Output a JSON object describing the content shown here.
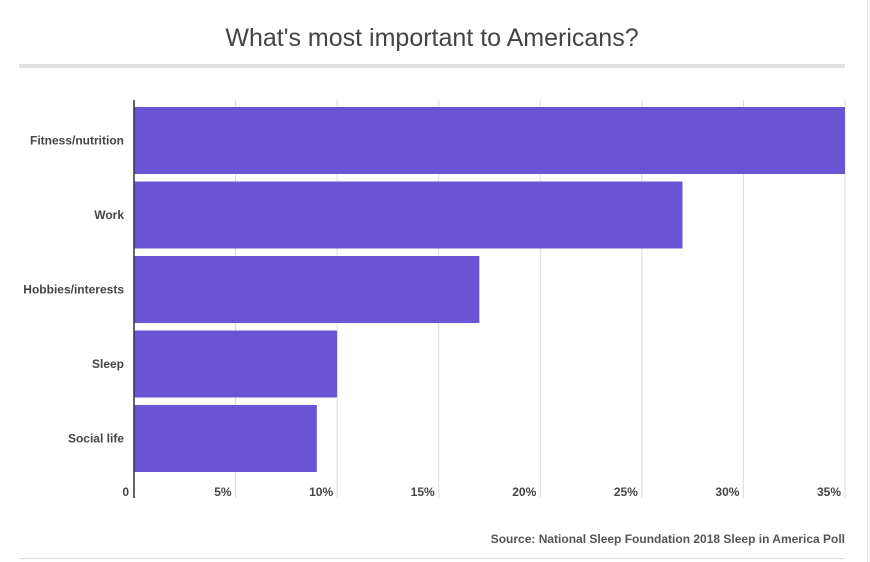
{
  "chart_data": {
    "type": "bar",
    "orientation": "horizontal",
    "title": "What's most important to Americans?",
    "categories": [
      "Fitness/nutrition",
      "Work",
      "Hobbies/interests",
      "Sleep",
      "Social life"
    ],
    "values": [
      35,
      27,
      17,
      10,
      9
    ],
    "x_ticks": [
      "0",
      "5%",
      "10%",
      "15%",
      "20%",
      "25%",
      "30%",
      "35%"
    ],
    "xlim": [
      0,
      35
    ],
    "grid": true,
    "bar_color": "#6c55d5"
  },
  "source": "Source: National Sleep Foundation 2018 Sleep in America Poll"
}
